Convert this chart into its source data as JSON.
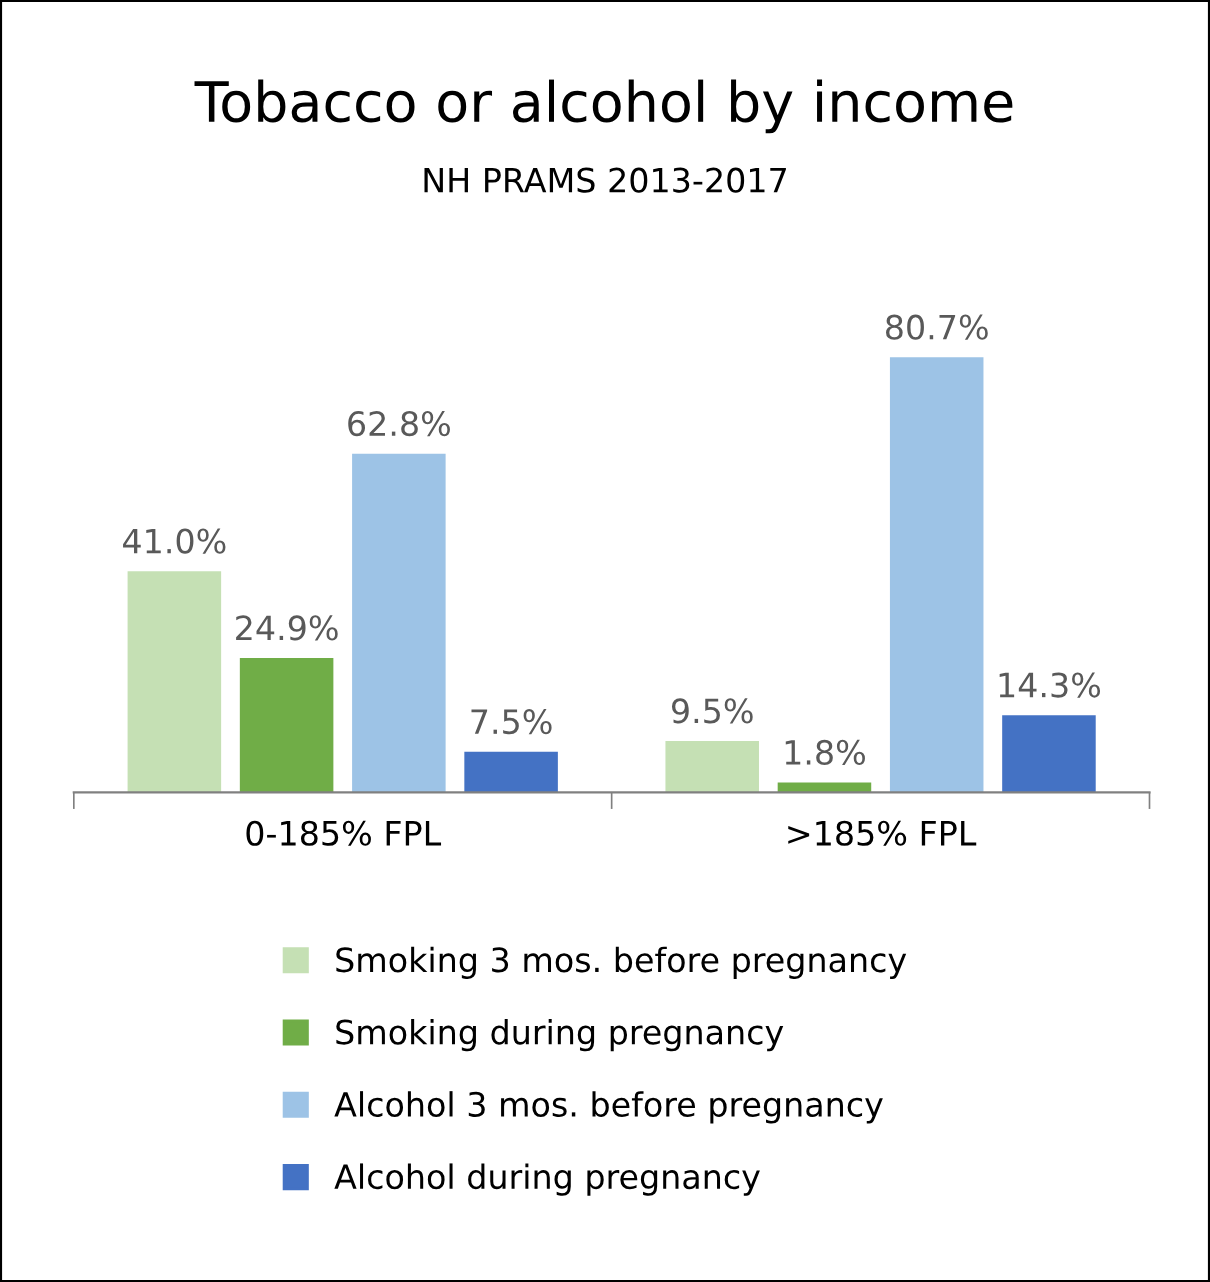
{
  "chart_data": {
    "type": "bar",
    "title": "Tobacco or alcohol by income",
    "subtitle": "NH PRAMS 2013-2017",
    "categories": [
      "0-185% FPL",
      ">185% FPL"
    ],
    "series": [
      {
        "name": "Smoking 3 mos. before pregnancy",
        "color": "#c5e0b4",
        "values": [
          41.0,
          9.5
        ],
        "value_labels": [
          "41.0%",
          "9.5%"
        ]
      },
      {
        "name": "Smoking during pregnancy",
        "color": "#70ad47",
        "values": [
          24.9,
          1.8
        ],
        "value_labels": [
          "24.9%",
          "1.8%"
        ]
      },
      {
        "name": "Alcohol 3 mos. before pregnancy",
        "color": "#9dc3e6",
        "values": [
          62.8,
          80.7
        ],
        "value_labels": [
          "62.8%",
          "80.7%"
        ]
      },
      {
        "name": "Alcohol during pregnancy",
        "color": "#4472c4",
        "values": [
          7.5,
          14.3
        ],
        "value_labels": [
          "7.5%",
          "14.3%"
        ]
      }
    ],
    "legend": "bottom",
    "grid": false,
    "tick_labels": "x"
  }
}
